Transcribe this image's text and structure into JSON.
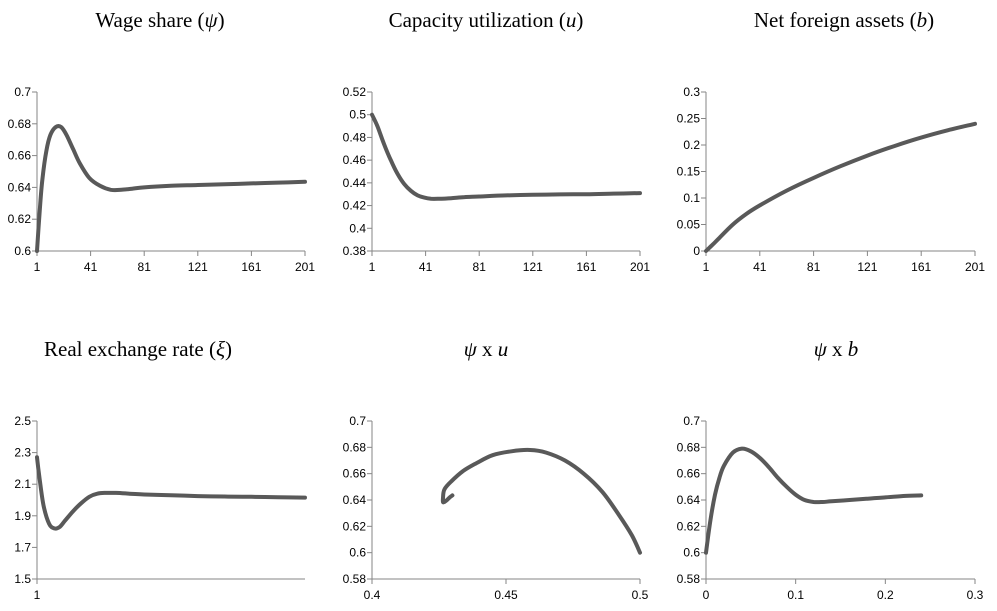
{
  "chart_data": [
    {
      "type": "line",
      "title_parts": [
        {
          "t": "Wage share ("
        },
        {
          "t": "ψ",
          "math": true
        },
        {
          "t": ")"
        }
      ],
      "xlim": [
        1,
        201
      ],
      "ylim": [
        0.6,
        0.7
      ],
      "x_ticks": [
        1,
        41,
        81,
        121,
        161,
        201
      ],
      "x_tick_labels": [
        "1",
        "41",
        "81",
        "121",
        "161",
        "201"
      ],
      "y_ticks": [
        0.6,
        0.62,
        0.64,
        0.66,
        0.68,
        0.7
      ],
      "y_tick_labels": [
        "0.6",
        "0.62",
        "0.64",
        "0.66",
        "0.68",
        "0.7"
      ],
      "series": [
        {
          "color": "#595959",
          "x": [
            1,
            3,
            5,
            8,
            11,
            15,
            19,
            23,
            28,
            33,
            40,
            48,
            56,
            64,
            72,
            81,
            101,
            121,
            141,
            161,
            181,
            201
          ],
          "y": [
            0.6,
            0.625,
            0.645,
            0.663,
            0.673,
            0.678,
            0.678,
            0.673,
            0.664,
            0.655,
            0.646,
            0.641,
            0.6385,
            0.6385,
            0.6392,
            0.64,
            0.641,
            0.6415,
            0.642,
            0.6425,
            0.643,
            0.6435
          ]
        }
      ]
    },
    {
      "type": "line",
      "title_parts": [
        {
          "t": "Capacity utilization ("
        },
        {
          "t": "u",
          "math": true
        },
        {
          "t": ")"
        }
      ],
      "xlim": [
        1,
        201
      ],
      "ylim": [
        0.38,
        0.52
      ],
      "x_ticks": [
        1,
        41,
        81,
        121,
        161,
        201
      ],
      "x_tick_labels": [
        "1",
        "41",
        "81",
        "121",
        "161",
        "201"
      ],
      "y_ticks": [
        0.38,
        0.4,
        0.42,
        0.44,
        0.46,
        0.48,
        0.5,
        0.52
      ],
      "y_tick_labels": [
        "0.38",
        "0.4",
        "0.42",
        "0.44",
        "0.46",
        "0.48",
        "0.5",
        "0.52"
      ],
      "series": [
        {
          "color": "#595959",
          "x": [
            1,
            5,
            10,
            15,
            20,
            25,
            30,
            35,
            40,
            45,
            50,
            60,
            70,
            81,
            101,
            121,
            141,
            161,
            181,
            201
          ],
          "y": [
            0.5,
            0.49,
            0.474,
            0.46,
            0.448,
            0.439,
            0.433,
            0.429,
            0.427,
            0.426,
            0.426,
            0.4265,
            0.4275,
            0.428,
            0.429,
            0.4295,
            0.4298,
            0.43,
            0.4305,
            0.431
          ]
        }
      ]
    },
    {
      "type": "line",
      "title_parts": [
        {
          "t": "Net foreign assets ("
        },
        {
          "t": "b",
          "math": true
        },
        {
          "t": ")"
        }
      ],
      "xlim": [
        1,
        201
      ],
      "ylim": [
        0,
        0.3
      ],
      "x_ticks": [
        1,
        41,
        81,
        121,
        161,
        201
      ],
      "x_tick_labels": [
        "1",
        "41",
        "81",
        "121",
        "161",
        "201"
      ],
      "y_ticks": [
        0,
        0.05,
        0.1,
        0.15,
        0.2,
        0.25,
        0.3
      ],
      "y_tick_labels": [
        "0",
        "0.05",
        "0.1",
        "0.15",
        "0.2",
        "0.25",
        "0.3"
      ],
      "series": [
        {
          "color": "#595959",
          "x": [
            1,
            6,
            11,
            21,
            31,
            41,
            61,
            81,
            101,
            121,
            141,
            161,
            181,
            201
          ],
          "y": [
            0,
            0.012,
            0.025,
            0.05,
            0.07,
            0.086,
            0.114,
            0.138,
            0.16,
            0.18,
            0.198,
            0.214,
            0.228,
            0.24
          ]
        }
      ]
    },
    {
      "type": "line",
      "title_parts": [
        {
          "t": "Real exchange rate ("
        },
        {
          "t": "ξ",
          "math": true
        },
        {
          "t": ")"
        }
      ],
      "xlim": [
        1,
        201
      ],
      "ylim": [
        1.5,
        2.5
      ],
      "x_ticks": [
        1
      ],
      "x_tick_labels": [
        "1"
      ],
      "y_ticks": [
        1.5,
        1.7,
        1.9,
        2.1,
        2.3,
        2.5
      ],
      "y_tick_labels": [
        "1.5",
        "1.7",
        "1.9",
        "2.1",
        "2.3",
        "2.5"
      ],
      "series": [
        {
          "color": "#595959",
          "x": [
            1,
            3,
            6,
            10,
            14,
            18,
            22,
            28,
            34,
            40,
            46,
            52,
            60,
            70,
            81,
            101,
            121,
            141,
            161,
            181,
            201
          ],
          "y": [
            2.27,
            2.13,
            1.96,
            1.85,
            1.82,
            1.83,
            1.87,
            1.93,
            1.98,
            2.02,
            2.04,
            2.045,
            2.045,
            2.04,
            2.035,
            2.03,
            2.025,
            2.022,
            2.02,
            2.018,
            2.015
          ]
        }
      ]
    },
    {
      "type": "line",
      "title_parts": [
        {
          "t": "ψ",
          "math": true
        },
        {
          "t": " x "
        },
        {
          "t": "u",
          "math": true
        }
      ],
      "xlim": [
        0.4,
        0.5
      ],
      "ylim": [
        0.58,
        0.7
      ],
      "x_ticks": [
        0.4,
        0.45,
        0.5
      ],
      "x_tick_labels": [
        "0.4",
        "0.45",
        "0.5"
      ],
      "y_ticks": [
        0.58,
        0.6,
        0.62,
        0.64,
        0.66,
        0.68,
        0.7
      ],
      "y_tick_labels": [
        "0.58",
        "0.6",
        "0.62",
        "0.64",
        "0.66",
        "0.68",
        "0.7"
      ],
      "series": [
        {
          "color": "#595959",
          "x": [
            0.5,
            0.497,
            0.492,
            0.486,
            0.479,
            0.472,
            0.465,
            0.459,
            0.452,
            0.445,
            0.439,
            0.434,
            0.4295,
            0.427,
            0.4265,
            0.4265,
            0.427,
            0.428,
            0.429,
            0.43
          ],
          "y": [
            0.6,
            0.613,
            0.629,
            0.646,
            0.66,
            0.67,
            0.676,
            0.678,
            0.677,
            0.674,
            0.668,
            0.662,
            0.654,
            0.648,
            0.6415,
            0.6385,
            0.6385,
            0.64,
            0.642,
            0.6435
          ]
        }
      ]
    },
    {
      "type": "line",
      "title_parts": [
        {
          "t": "ψ",
          "math": true
        },
        {
          "t": " x "
        },
        {
          "t": "b",
          "math": true
        }
      ],
      "xlim": [
        0,
        0.3
      ],
      "ylim": [
        0.58,
        0.7
      ],
      "x_ticks": [
        0,
        0.1,
        0.2,
        0.3
      ],
      "x_tick_labels": [
        "0",
        "0.1",
        "0.2",
        "0.3"
      ],
      "y_ticks": [
        0.58,
        0.6,
        0.62,
        0.64,
        0.66,
        0.68,
        0.7
      ],
      "y_tick_labels": [
        "0.58",
        "0.6",
        "0.62",
        "0.64",
        "0.66",
        "0.68",
        "0.7"
      ],
      "series": [
        {
          "color": "#595959",
          "x": [
            0,
            0.005,
            0.01,
            0.015,
            0.02,
            0.03,
            0.04,
            0.05,
            0.06,
            0.07,
            0.08,
            0.09,
            0.1,
            0.11,
            0.12,
            0.13,
            0.14,
            0.16,
            0.18,
            0.2,
            0.22,
            0.24
          ],
          "y": [
            0.6,
            0.625,
            0.644,
            0.657,
            0.666,
            0.676,
            0.679,
            0.677,
            0.672,
            0.665,
            0.657,
            0.65,
            0.644,
            0.64,
            0.6385,
            0.6385,
            0.639,
            0.64,
            0.641,
            0.642,
            0.643,
            0.6435
          ]
        }
      ]
    }
  ]
}
